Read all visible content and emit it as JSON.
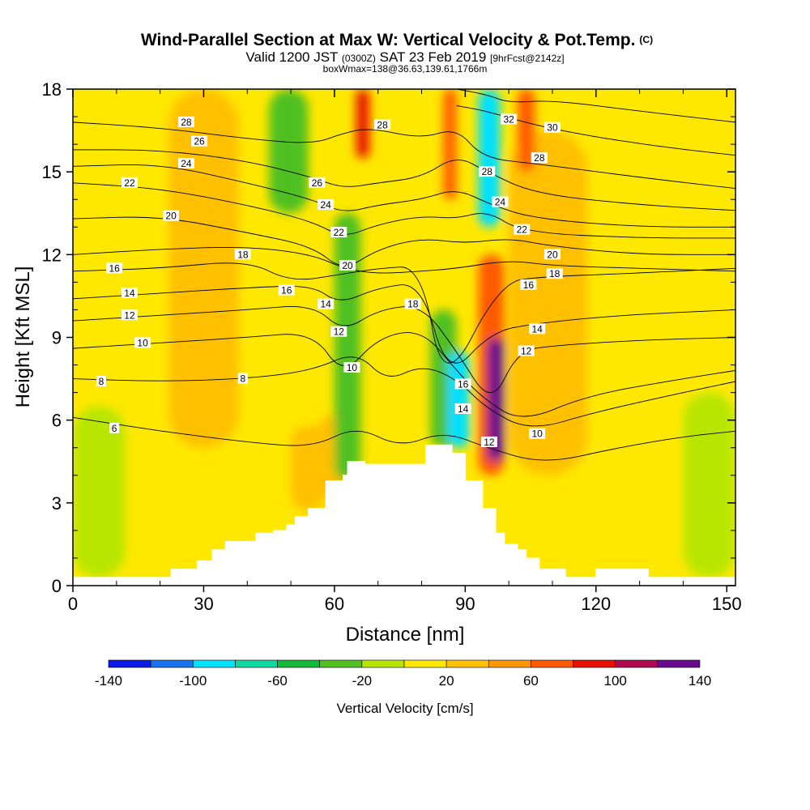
{
  "chart_data": {
    "type": "heatmap",
    "title": "Wind-Parallel Section at Max W: Vertical Velocity & Pot.Temp.",
    "title_mark": "(C)",
    "subtitle_parts": [
      "Valid 1200 JST ",
      "(0300Z)",
      " SAT 23 Feb 2019 ",
      "[9hrFcst@2142z]"
    ],
    "subtitle2": "boxWmax=138@36.63,139.61,1766m",
    "xlabel": "Distance [nm]",
    "ylabel": "Height [Kft MSL]",
    "xlim": [
      0,
      152
    ],
    "ylim": [
      0,
      18
    ],
    "x_ticks": [
      0,
      30,
      60,
      90,
      120,
      150
    ],
    "y_ticks": [
      0,
      3,
      6,
      9,
      12,
      15,
      18
    ],
    "colorbar": {
      "label": "Vertical Velocity [cm/s]",
      "ticks": [
        -140,
        -100,
        -60,
        -20,
        20,
        60,
        100,
        140
      ],
      "bins": [
        -140,
        -120,
        -100,
        -80,
        -60,
        -40,
        -20,
        0,
        20,
        40,
        60,
        80,
        100,
        120,
        140
      ],
      "colors": [
        "#0c1ae6",
        "#1874ee",
        "#00e0ff",
        "#10d8a0",
        "#14b93a",
        "#50c020",
        "#b8e600",
        "#ffe800",
        "#ffc000",
        "#ff9600",
        "#ff5a00",
        "#e81000",
        "#b00a50",
        "#6a0a8e"
      ]
    },
    "terrain": [
      [
        0,
        0.3
      ],
      [
        22.5,
        0.3
      ],
      [
        22.5,
        0.6
      ],
      [
        28.5,
        0.6
      ],
      [
        28.5,
        0.9
      ],
      [
        32,
        0.9
      ],
      [
        32,
        1.3
      ],
      [
        35,
        1.3
      ],
      [
        35,
        1.6
      ],
      [
        42,
        1.6
      ],
      [
        42,
        1.9
      ],
      [
        46,
        1.9
      ],
      [
        46,
        2.0
      ],
      [
        49,
        2.0
      ],
      [
        49,
        2.2
      ],
      [
        51,
        2.2
      ],
      [
        51,
        2.5
      ],
      [
        54,
        2.5
      ],
      [
        54,
        2.8
      ],
      [
        58,
        2.8
      ],
      [
        58,
        3.8
      ],
      [
        62,
        3.8
      ],
      [
        62,
        4.0
      ],
      [
        63,
        4.0
      ],
      [
        63,
        4.5
      ],
      [
        67,
        4.5
      ],
      [
        67,
        4.4
      ],
      [
        81,
        4.4
      ],
      [
        81,
        5.1
      ],
      [
        87,
        5.1
      ],
      [
        87,
        4.8
      ],
      [
        90,
        4.8
      ],
      [
        90,
        3.8
      ],
      [
        94,
        3.8
      ],
      [
        94,
        2.8
      ],
      [
        97,
        2.8
      ],
      [
        97,
        1.9
      ],
      [
        99,
        1.9
      ],
      [
        99,
        1.5
      ],
      [
        102,
        1.5
      ],
      [
        102,
        1.3
      ],
      [
        104,
        1.3
      ],
      [
        104,
        1.0
      ],
      [
        107,
        1.0
      ],
      [
        107,
        0.6
      ],
      [
        113,
        0.6
      ],
      [
        113,
        0.3
      ],
      [
        120,
        0.3
      ],
      [
        120,
        0.6
      ],
      [
        132,
        0.6
      ],
      [
        132,
        0.3
      ],
      [
        152,
        0.3
      ]
    ],
    "w_features": [
      {
        "x": [
          50,
          58
        ],
        "y": [
          2.7,
          5.8
        ],
        "w": 30
      },
      {
        "x": [
          56,
          64
        ],
        "y": [
          3.2,
          6.2
        ],
        "w": 30
      },
      {
        "x": [
          22,
          38
        ],
        "y": [
          5.0,
          18
        ],
        "w": 20
      },
      {
        "x": [
          100,
          118
        ],
        "y": [
          4.0,
          16.5
        ],
        "w": 25
      },
      {
        "x": [
          60,
          66
        ],
        "y": [
          3.8,
          13.5
        ],
        "w": -30
      },
      {
        "x": [
          45,
          54
        ],
        "y": [
          13.5,
          18
        ],
        "w": -30
      },
      {
        "x": [
          65,
          68
        ],
        "y": [
          15.5,
          18
        ],
        "w": 85
      },
      {
        "x": [
          82,
          88
        ],
        "y": [
          5.0,
          10.0
        ],
        "w": -40
      },
      {
        "x": [
          86,
          91
        ],
        "y": [
          5.0,
          8.5
        ],
        "w": -90
      },
      {
        "x": [
          93,
          99
        ],
        "y": [
          4.0,
          12.0
        ],
        "w": 70
      },
      {
        "x": [
          95,
          99
        ],
        "y": [
          4.5,
          9.0
        ],
        "w": 120
      },
      {
        "x": [
          85,
          88
        ],
        "y": [
          14.0,
          18
        ],
        "w": 70
      },
      {
        "x": [
          93,
          98
        ],
        "y": [
          13.0,
          18
        ],
        "w": -90
      },
      {
        "x": [
          102,
          106
        ],
        "y": [
          15.0,
          18
        ],
        "w": 70
      },
      {
        "x": [
          0,
          12
        ],
        "y": [
          0.3,
          6.5
        ],
        "w": -20
      },
      {
        "x": [
          140,
          152
        ],
        "y": [
          0.3,
          7.0
        ],
        "w": -20
      }
    ],
    "theta_contours": [
      {
        "label": "6",
        "points": [
          [
            0,
            6.1
          ],
          [
            20,
            5.6
          ],
          [
            40,
            5.2
          ],
          [
            55,
            5.0
          ],
          [
            65,
            5.8
          ],
          [
            75,
            5.0
          ],
          [
            85,
            5.6
          ],
          [
            95,
            5.0
          ],
          [
            108,
            4.4
          ],
          [
            125,
            5.0
          ],
          [
            140,
            5.4
          ],
          [
            152,
            5.6
          ]
        ]
      },
      {
        "label": "8",
        "points": [
          [
            0,
            7.5
          ],
          [
            20,
            7.4
          ],
          [
            40,
            7.5
          ],
          [
            55,
            7.8
          ],
          [
            65,
            8.5
          ],
          [
            72,
            7.4
          ],
          [
            80,
            8.0
          ],
          [
            88,
            7.5
          ],
          [
            95,
            6.4
          ],
          [
            105,
            5.6
          ],
          [
            120,
            6.3
          ],
          [
            140,
            7.0
          ],
          [
            152,
            7.4
          ]
        ]
      },
      {
        "label": "10",
        "points": [
          [
            0,
            8.6
          ],
          [
            20,
            8.8
          ],
          [
            40,
            9.0
          ],
          [
            55,
            9.2
          ],
          [
            62,
            7.6
          ],
          [
            70,
            9.0
          ],
          [
            80,
            9.3
          ],
          [
            88,
            7.8
          ],
          [
            94,
            6.8
          ],
          [
            103,
            5.9
          ],
          [
            118,
            6.9
          ],
          [
            140,
            7.5
          ],
          [
            152,
            7.8
          ]
        ]
      },
      {
        "label": "12",
        "points": [
          [
            0,
            9.6
          ],
          [
            20,
            9.8
          ],
          [
            40,
            10.0
          ],
          [
            55,
            10.2
          ],
          [
            62,
            9.2
          ],
          [
            70,
            10.0
          ],
          [
            80,
            10.2
          ],
          [
            88,
            8.5
          ],
          [
            96,
            6.5
          ],
          [
            102,
            8.5
          ],
          [
            110,
            8.7
          ],
          [
            130,
            8.9
          ],
          [
            152,
            9.0
          ]
        ]
      },
      {
        "label": "14",
        "points": [
          [
            0,
            10.4
          ],
          [
            20,
            10.6
          ],
          [
            40,
            10.8
          ],
          [
            55,
            10.9
          ],
          [
            61,
            10.2
          ],
          [
            70,
            10.8
          ],
          [
            80,
            11.0
          ],
          [
            86,
            7.5
          ],
          [
            96,
            9.2
          ],
          [
            106,
            9.5
          ],
          [
            125,
            9.8
          ],
          [
            152,
            10.0
          ]
        ]
      },
      {
        "label": "16",
        "points": [
          [
            0,
            11.4
          ],
          [
            20,
            11.5
          ],
          [
            40,
            11.8
          ],
          [
            50,
            11.0
          ],
          [
            62,
            11.3
          ],
          [
            70,
            11.5
          ],
          [
            80,
            11.6
          ],
          [
            85,
            7.0
          ],
          [
            98,
            11.0
          ],
          [
            108,
            11.2
          ],
          [
            125,
            11.3
          ],
          [
            152,
            11.5
          ]
        ]
      },
      {
        "label": "18",
        "points": [
          [
            0,
            12.0
          ],
          [
            20,
            12.2
          ],
          [
            40,
            12.3
          ],
          [
            55,
            12.0
          ],
          [
            62,
            11.5
          ],
          [
            70,
            11.3
          ],
          [
            80,
            11.4
          ],
          [
            88,
            11.5
          ],
          [
            100,
            11.8
          ],
          [
            110,
            11.6
          ],
          [
            130,
            11.5
          ],
          [
            152,
            11.4
          ]
        ]
      },
      {
        "label": "20",
        "points": [
          [
            0,
            13.3
          ],
          [
            20,
            13.4
          ],
          [
            40,
            12.8
          ],
          [
            55,
            12.3
          ],
          [
            62,
            11.4
          ],
          [
            70,
            12.2
          ],
          [
            80,
            12.6
          ],
          [
            90,
            12.4
          ],
          [
            100,
            12.6
          ],
          [
            110,
            12.3
          ],
          [
            130,
            12.0
          ],
          [
            152,
            12.0
          ]
        ]
      },
      {
        "label": "22",
        "points": [
          [
            0,
            14.6
          ],
          [
            20,
            14.4
          ],
          [
            40,
            13.8
          ],
          [
            55,
            13.2
          ],
          [
            62,
            12.6
          ],
          [
            70,
            13.1
          ],
          [
            80,
            13.4
          ],
          [
            88,
            13.3
          ],
          [
            95,
            13.6
          ],
          [
            103,
            12.8
          ],
          [
            130,
            12.6
          ],
          [
            152,
            12.6
          ]
        ]
      },
      {
        "label": "24",
        "points": [
          [
            0,
            15.2
          ],
          [
            20,
            15.3
          ],
          [
            40,
            14.6
          ],
          [
            55,
            14.0
          ],
          [
            62,
            13.5
          ],
          [
            70,
            13.8
          ],
          [
            80,
            14.0
          ],
          [
            88,
            14.4
          ],
          [
            96,
            13.8
          ],
          [
            106,
            13.3
          ],
          [
            130,
            13.0
          ],
          [
            152,
            13.0
          ]
        ]
      },
      {
        "label": "26",
        "points": [
          [
            0,
            15.8
          ],
          [
            20,
            15.8
          ],
          [
            40,
            15.4
          ],
          [
            55,
            14.8
          ],
          [
            62,
            14.4
          ],
          [
            70,
            14.6
          ],
          [
            80,
            14.8
          ],
          [
            88,
            15.6
          ],
          [
            95,
            15.0
          ],
          [
            106,
            14.2
          ],
          [
            130,
            13.8
          ],
          [
            152,
            13.6
          ]
        ]
      },
      {
        "label": "28",
        "points": [
          [
            0,
            16.8
          ],
          [
            20,
            16.6
          ],
          [
            40,
            16.2
          ],
          [
            55,
            16.0
          ],
          [
            62,
            16.4
          ],
          [
            68,
            16.6
          ],
          [
            80,
            16.2
          ],
          [
            88,
            16.6
          ],
          [
            94,
            15.5
          ],
          [
            106,
            15.3
          ],
          [
            130,
            14.8
          ],
          [
            152,
            14.4
          ]
        ]
      },
      {
        "label": "30",
        "points": [
          [
            88,
            17.4
          ],
          [
            95,
            17.2
          ],
          [
            108,
            16.6
          ],
          [
            130,
            16.0
          ],
          [
            152,
            15.6
          ]
        ]
      },
      {
        "label": "32",
        "points": [
          [
            88,
            18.0
          ],
          [
            95,
            17.8
          ],
          [
            100,
            17.5
          ],
          [
            110,
            17.6
          ],
          [
            130,
            17.2
          ],
          [
            152,
            16.8
          ]
        ]
      }
    ],
    "contour_labels": [
      {
        "text": "28",
        "x": 26,
        "y": 16.8
      },
      {
        "text": "26",
        "x": 29,
        "y": 16.1
      },
      {
        "text": "24",
        "x": 26,
        "y": 15.3
      },
      {
        "text": "22",
        "x": 13,
        "y": 14.6
      },
      {
        "text": "20",
        "x": 22.5,
        "y": 13.4
      },
      {
        "text": "18",
        "x": 39,
        "y": 12.0
      },
      {
        "text": "16",
        "x": 9.5,
        "y": 11.5
      },
      {
        "text": "16",
        "x": 49,
        "y": 10.7
      },
      {
        "text": "14",
        "x": 13,
        "y": 10.6
      },
      {
        "text": "14",
        "x": 58,
        "y": 10.2
      },
      {
        "text": "12",
        "x": 13,
        "y": 9.8
      },
      {
        "text": "12",
        "x": 61,
        "y": 9.2
      },
      {
        "text": "10",
        "x": 16,
        "y": 8.8
      },
      {
        "text": "10",
        "x": 64,
        "y": 7.9
      },
      {
        "text": "8",
        "x": 6.5,
        "y": 7.4
      },
      {
        "text": "8",
        "x": 39,
        "y": 7.5
      },
      {
        "text": "6",
        "x": 9.5,
        "y": 5.7
      },
      {
        "text": "28",
        "x": 71,
        "y": 16.7
      },
      {
        "text": "26",
        "x": 56,
        "y": 14.6
      },
      {
        "text": "24",
        "x": 58,
        "y": 13.8
      },
      {
        "text": "22",
        "x": 61,
        "y": 12.8
      },
      {
        "text": "20",
        "x": 63,
        "y": 11.6
      },
      {
        "text": "18",
        "x": 78,
        "y": 10.2
      },
      {
        "text": "32",
        "x": 100,
        "y": 16.9
      },
      {
        "text": "30",
        "x": 110,
        "y": 16.6
      },
      {
        "text": "28",
        "x": 107,
        "y": 15.5
      },
      {
        "text": "28",
        "x": 95,
        "y": 15.0
      },
      {
        "text": "24",
        "x": 98,
        "y": 13.9
      },
      {
        "text": "22",
        "x": 103,
        "y": 12.9
      },
      {
        "text": "20",
        "x": 110,
        "y": 12.0
      },
      {
        "text": "18",
        "x": 110.5,
        "y": 11.3
      },
      {
        "text": "16",
        "x": 104.5,
        "y": 10.9
      },
      {
        "text": "14",
        "x": 106.5,
        "y": 9.3
      },
      {
        "text": "12",
        "x": 104,
        "y": 8.5
      },
      {
        "text": "16",
        "x": 89.5,
        "y": 7.3
      },
      {
        "text": "14",
        "x": 89.5,
        "y": 6.4
      },
      {
        "text": "12",
        "x": 95.5,
        "y": 5.2
      },
      {
        "text": "10",
        "x": 106.5,
        "y": 5.5
      }
    ]
  }
}
